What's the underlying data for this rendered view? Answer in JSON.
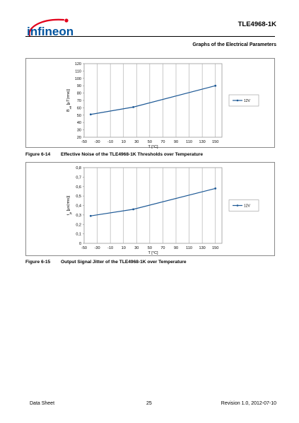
{
  "header": {
    "logo_text": "infineon",
    "document_title": "TLE4968-1K",
    "section_title": "Graphs of the Electrical Parameters"
  },
  "figures": [
    {
      "number": "Figure 6-14",
      "caption": "Effective Noise of the TLE4968-1K Thresholds over Temperature"
    },
    {
      "number": "Figure 6-15",
      "caption": "Output Signal Jitter of the TLE4968-1K over Temperature"
    }
  ],
  "chart_data": [
    {
      "type": "line",
      "title": "",
      "xlabel": "T [°C]",
      "ylabel": "B_eff [µT(rms)]",
      "ylabel_main": "B",
      "ylabel_sub": "eff",
      "ylabel_rest": " [µT(rms)]",
      "xlim": [
        -50,
        160
      ],
      "ylim": [
        20,
        120
      ],
      "x_ticks": [
        "-50",
        "-30",
        "-10",
        "10",
        "30",
        "50",
        "70",
        "90",
        "110",
        "130",
        "150"
      ],
      "y_ticks": [
        "20",
        "30",
        "40",
        "50",
        "60",
        "70",
        "80",
        "90",
        "100",
        "110",
        "120"
      ],
      "grid": "vertical",
      "legend": "right",
      "series": [
        {
          "name": "12V",
          "color": "#1f5a96",
          "x": [
            -40,
            25,
            150
          ],
          "y": [
            51,
            61,
            90
          ]
        }
      ]
    },
    {
      "type": "line",
      "title": "",
      "xlabel": "T [°C]",
      "ylabel": "t_jit [µs(rms)]",
      "ylabel_main": "t",
      "ylabel_sub": "jit",
      "ylabel_rest": " [µs(rms)]",
      "xlim": [
        -50,
        160
      ],
      "ylim": [
        0,
        0.8
      ],
      "x_ticks": [
        "-50",
        "-30",
        "-10",
        "10",
        "30",
        "50",
        "70",
        "90",
        "110",
        "130",
        "150"
      ],
      "y_ticks": [
        "0",
        "0,1",
        "0,2",
        "0,3",
        "0,4",
        "0,5",
        "0,6",
        "0,7",
        "0,8"
      ],
      "grid": "vertical",
      "legend": "right",
      "series": [
        {
          "name": "12V",
          "color": "#1f5a96",
          "x": [
            -40,
            25,
            150
          ],
          "y": [
            0.29,
            0.36,
            0.58
          ]
        }
      ]
    }
  ],
  "footer": {
    "left": "Data Sheet",
    "center": "25",
    "right": "Revision 1.0, 2012-07-10"
  }
}
